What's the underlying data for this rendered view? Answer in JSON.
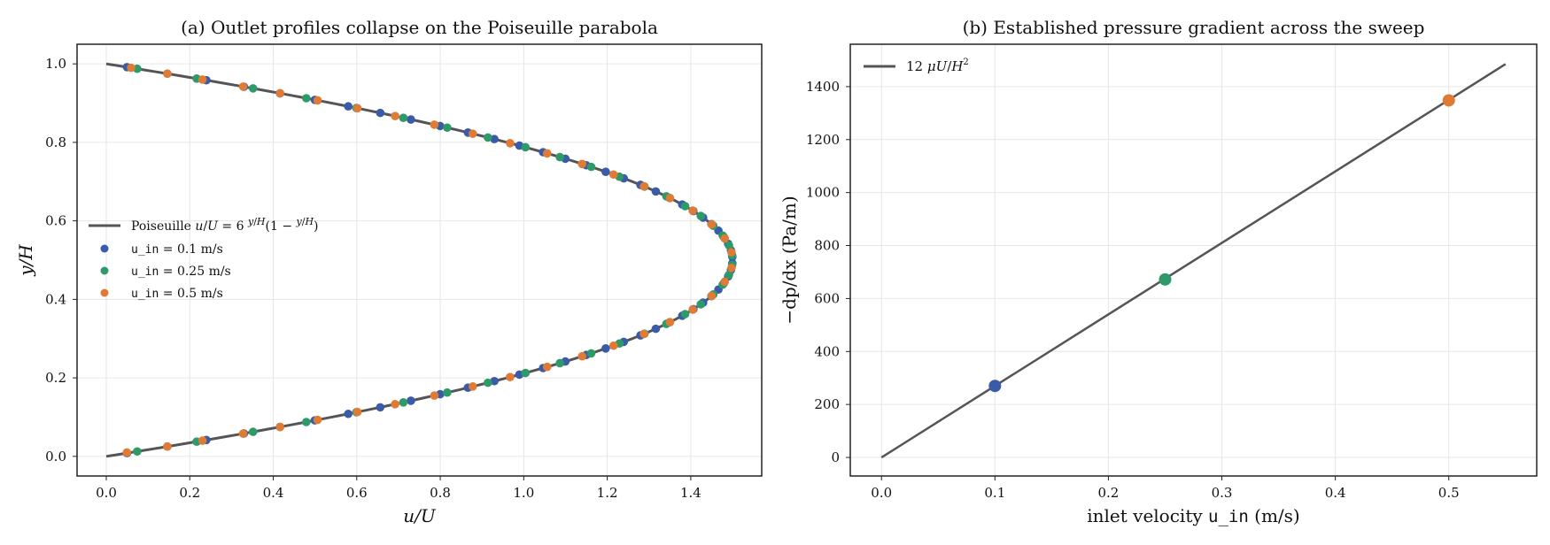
{
  "chart_data": [
    {
      "type": "scatter",
      "title": "(a) Outlet profiles collapse on the Poiseuille parabola",
      "xlabel": "u/U",
      "ylabel": "y/H",
      "xlim": [
        -0.07,
        1.57
      ],
      "ylim": [
        -0.05,
        1.05
      ],
      "xticks": [
        "0.0",
        "0.2",
        "0.4",
        "0.6",
        "0.8",
        "1.0",
        "1.2",
        "1.4"
      ],
      "yticks": [
        "0.0",
        "0.2",
        "0.4",
        "0.6",
        "0.8",
        "1.0"
      ],
      "grid": true,
      "legend_position": "center-left",
      "curve": {
        "name": "Poiseuille u/U = 6 y/H (1 − y/H)",
        "formula": "u/U = 6*(y/H)*(1 - y/H)",
        "y_range": [
          0,
          1
        ],
        "color": "#555555"
      },
      "series": [
        {
          "name": "u_in = 0.1 m/s",
          "color": "#3a5ba8",
          "y": [
            0.0083,
            0.025,
            0.0417,
            0.0583,
            0.075,
            0.0917,
            0.1083,
            0.125,
            0.1417,
            0.1583,
            0.175,
            0.1917,
            0.2083,
            0.225,
            0.2417,
            0.2583,
            0.275,
            0.2917,
            0.3083,
            0.325,
            0.3417,
            0.3583,
            0.375,
            0.3917,
            0.4083,
            0.425,
            0.4417,
            0.4583,
            0.475,
            0.4917,
            0.5083,
            0.525,
            0.5417,
            0.5583,
            0.575,
            0.5917,
            0.6083,
            0.625,
            0.6417,
            0.6583,
            0.675,
            0.6917,
            0.7083,
            0.725,
            0.7417,
            0.7583,
            0.775,
            0.7917,
            0.8083,
            0.825,
            0.8417,
            0.8583,
            0.875,
            0.8917,
            0.9083,
            0.925,
            0.9417,
            0.9583,
            0.975,
            0.9917
          ],
          "x": [
            0.0496,
            0.1463,
            0.2396,
            0.3296,
            0.4163,
            0.4996,
            0.5796,
            0.6563,
            0.7296,
            0.7996,
            0.8663,
            0.9296,
            0.9896,
            1.0463,
            1.0996,
            1.1496,
            1.1963,
            1.2396,
            1.2796,
            1.3163,
            1.3496,
            1.3796,
            1.4063,
            1.4296,
            1.4496,
            1.4663,
            1.4796,
            1.4896,
            1.4963,
            1.4996,
            1.4996,
            1.4963,
            1.4896,
            1.4796,
            1.4663,
            1.4496,
            1.4296,
            1.4063,
            1.3796,
            1.3496,
            1.3163,
            1.2796,
            1.2396,
            1.1963,
            1.1496,
            1.0996,
            1.0463,
            0.9896,
            0.9296,
            0.8663,
            0.7996,
            0.7296,
            0.6563,
            0.5796,
            0.4996,
            0.4163,
            0.3296,
            0.2396,
            0.1463,
            0.0496
          ]
        },
        {
          "name": "u_in = 0.25 m/s",
          "color": "#2e9a6a",
          "y": [
            0.0125,
            0.0375,
            0.0625,
            0.0875,
            0.1125,
            0.1375,
            0.1625,
            0.1875,
            0.2125,
            0.2375,
            0.2625,
            0.2875,
            0.3125,
            0.3375,
            0.3625,
            0.3875,
            0.4125,
            0.4375,
            0.4625,
            0.4875,
            0.5125,
            0.5375,
            0.5625,
            0.5875,
            0.6125,
            0.6375,
            0.6625,
            0.6875,
            0.7125,
            0.7375,
            0.7625,
            0.7875,
            0.8125,
            0.8375,
            0.8625,
            0.8875,
            0.9125,
            0.9375,
            0.9625,
            0.9875
          ],
          "x": [
            0.0741,
            0.2166,
            0.3516,
            0.4791,
            0.5991,
            0.7116,
            0.8166,
            0.9141,
            1.0041,
            1.0866,
            1.1616,
            1.2291,
            1.2891,
            1.3416,
            1.3866,
            1.4241,
            1.4541,
            1.4766,
            1.4916,
            1.4991,
            1.4991,
            1.4916,
            1.4766,
            1.4541,
            1.4241,
            1.3866,
            1.3416,
            1.2891,
            1.2291,
            1.1616,
            1.0866,
            1.0041,
            0.9141,
            0.8166,
            0.7116,
            0.5991,
            0.4791,
            0.3516,
            0.2166,
            0.0741
          ]
        },
        {
          "name": "u_in = 0.5 m/s",
          "color": "#e07b35",
          "y": [
            0.01,
            0.025,
            0.04,
            0.058,
            0.075,
            0.093,
            0.113,
            0.133,
            0.155,
            0.178,
            0.202,
            0.228,
            0.255,
            0.282,
            0.312,
            0.342,
            0.374,
            0.409,
            0.445,
            0.48,
            0.52,
            0.555,
            0.591,
            0.626,
            0.658,
            0.688,
            0.718,
            0.745,
            0.772,
            0.798,
            0.822,
            0.845,
            0.867,
            0.887,
            0.907,
            0.925,
            0.942,
            0.96,
            0.975,
            0.99
          ],
          "x": [
            0.0494,
            0.1462,
            0.2304,
            0.3278,
            0.4163,
            0.5062,
            0.6015,
            0.6919,
            0.7859,
            0.8779,
            0.9672,
            1.0561,
            1.1398,
            1.2151,
            1.2881,
            1.3503,
            1.4047,
            1.4503,
            1.4814,
            1.4976,
            1.4976,
            1.4814,
            1.4503,
            1.4047,
            1.3503,
            1.2881,
            1.2151,
            1.1398,
            1.0561,
            0.9672,
            0.8779,
            0.7859,
            0.6919,
            0.6015,
            0.5062,
            0.4163,
            0.3278,
            0.2304,
            0.1462,
            0.0594
          ]
        }
      ]
    },
    {
      "type": "line",
      "title": "(b) Established pressure gradient across the sweep",
      "xlabel_text": "inlet velocity ",
      "xlabel_code": "u_in",
      "xlabel_unit": " (m/s)",
      "ylabel": "−dp/dx (Pa/m)",
      "xlim": [
        -0.0275,
        0.5775
      ],
      "ylim": [
        -70,
        1560
      ],
      "xticks": [
        "0.0",
        "0.1",
        "0.2",
        "0.3",
        "0.4",
        "0.5"
      ],
      "yticks": [
        "0",
        "200",
        "400",
        "600",
        "800",
        "1000",
        "1200",
        "1400"
      ],
      "grid": true,
      "legend_position": "top-left",
      "line": {
        "name": "12 μU/H²",
        "color": "#555555",
        "x": [
          0.0,
          0.55
        ],
        "y": [
          0,
          1485
        ]
      },
      "points": [
        {
          "x": 0.1,
          "y": 270,
          "color": "#3a5ba8"
        },
        {
          "x": 0.25,
          "y": 672,
          "color": "#2e9a6a"
        },
        {
          "x": 0.5,
          "y": 1348,
          "color": "#e07b35"
        }
      ]
    }
  ]
}
